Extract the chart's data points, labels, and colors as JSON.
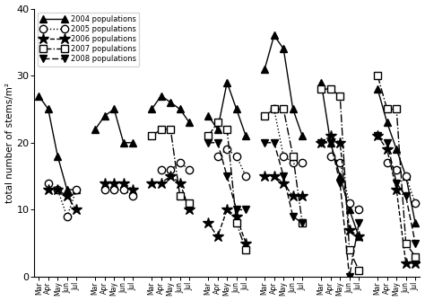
{
  "ylabel": "total number of stems/m²",
  "ylim": [
    0,
    40
  ],
  "yticks": [
    0,
    10,
    20,
    30,
    40
  ],
  "num_groups": 7,
  "months_per_group": 5,
  "month_labels": [
    "Mar",
    "Apr",
    "May",
    "Jun",
    "Jul"
  ],
  "series": {
    "2004": {
      "label": "2004 populations",
      "linestyle": "solid",
      "marker": "^",
      "markersize": 6,
      "fillstyle": "full",
      "segments": [
        [
          27,
          25,
          18,
          13,
          13
        ],
        [
          22,
          24,
          25,
          20,
          20
        ],
        [
          25,
          27,
          26,
          25,
          23
        ],
        [
          24,
          22,
          29,
          25,
          21
        ],
        [
          31,
          36,
          34,
          25,
          21
        ],
        [
          29,
          20,
          15,
          10,
          6
        ],
        [
          28,
          23,
          19,
          15,
          8
        ]
      ]
    },
    "2005": {
      "label": "2005 populations",
      "linestyle": "dotted",
      "marker": "o",
      "markersize": 6,
      "fillstyle": "none",
      "segments": [
        [
          null,
          14,
          13,
          9,
          13
        ],
        [
          null,
          13,
          13,
          13,
          12
        ],
        [
          null,
          16,
          16,
          17,
          16
        ],
        [
          null,
          18,
          19,
          18,
          15
        ],
        [
          null,
          25,
          18,
          17,
          17
        ],
        [
          null,
          18,
          17,
          11,
          10
        ],
        [
          null,
          17,
          16,
          15,
          11
        ]
      ]
    },
    "2006": {
      "label": "2006 populations",
      "linestyle": "dashed",
      "marker": "*",
      "markersize": 9,
      "fillstyle": "full",
      "segments": [
        [
          null,
          13,
          13,
          12,
          10
        ],
        [
          null,
          14,
          14,
          14,
          13
        ],
        [
          14,
          14,
          15,
          14,
          10
        ],
        [
          8,
          6,
          10,
          9,
          5
        ],
        [
          15,
          15,
          14,
          12,
          12
        ],
        [
          20,
          21,
          20,
          7,
          6
        ],
        [
          21,
          19,
          13,
          2,
          2
        ]
      ]
    },
    "2007": {
      "label": "2007 populations",
      "linestyle": "dashdot",
      "marker": "s",
      "markersize": 6,
      "fillstyle": "none",
      "segments": [
        [
          null,
          null,
          null,
          null,
          null
        ],
        [
          null,
          null,
          null,
          null,
          null
        ],
        [
          21,
          22,
          22,
          12,
          11
        ],
        [
          21,
          23,
          22,
          8,
          4
        ],
        [
          24,
          25,
          25,
          18,
          8
        ],
        [
          28,
          28,
          27,
          4,
          1
        ],
        [
          30,
          25,
          25,
          5,
          3
        ]
      ]
    },
    "2008": {
      "label": "2008 populations",
      "linestyle": "loosedash",
      "marker": "v",
      "markersize": 6,
      "fillstyle": "full",
      "segments": [
        [
          null,
          null,
          null,
          null,
          null
        ],
        [
          null,
          null,
          null,
          null,
          null
        ],
        [
          null,
          null,
          null,
          null,
          null
        ],
        [
          20,
          20,
          15,
          10,
          10
        ],
        [
          20,
          20,
          15,
          9,
          8
        ],
        [
          20,
          20,
          14,
          0,
          8
        ],
        [
          21,
          20,
          14,
          12,
          5
        ]
      ]
    }
  }
}
